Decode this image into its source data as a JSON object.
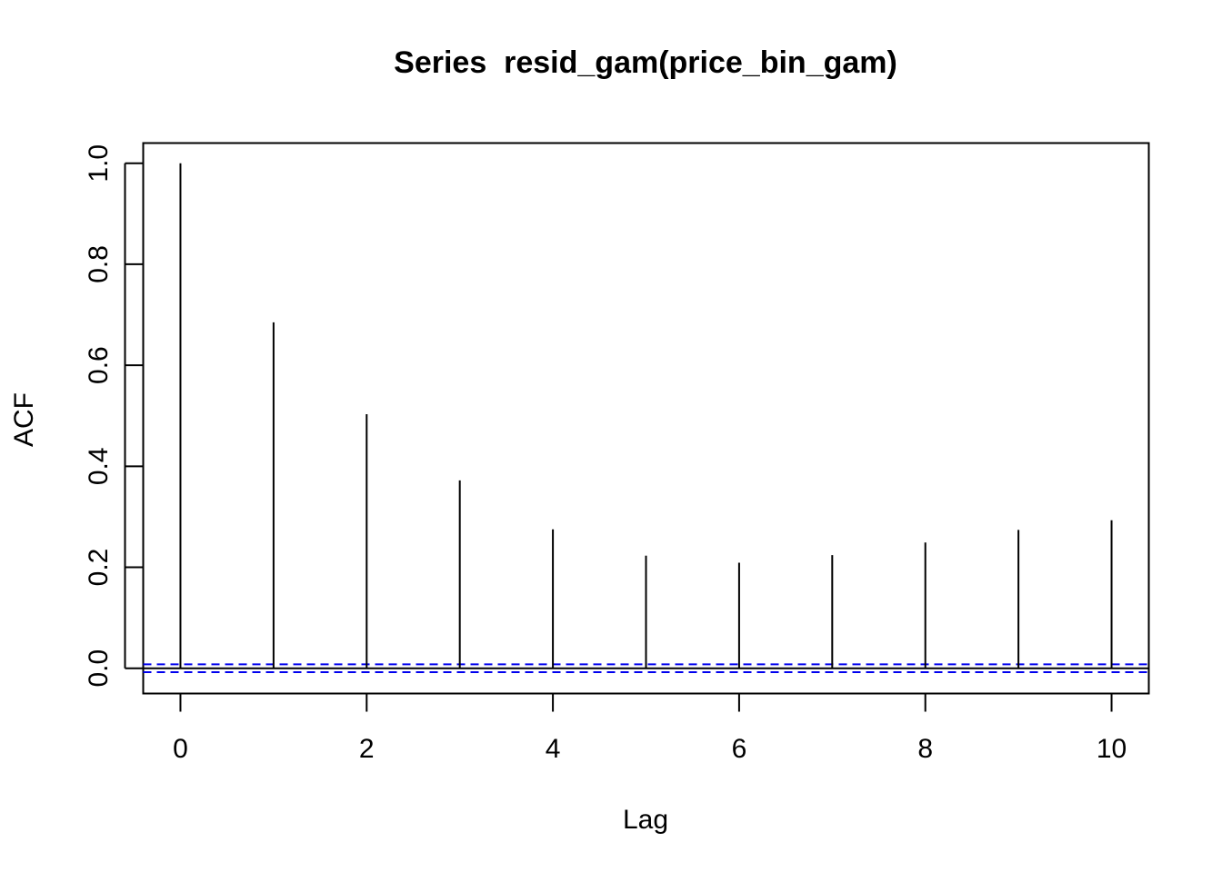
{
  "chart_data": {
    "type": "bar",
    "title": "Series  resid_gam(price_bin_gam)",
    "xlabel": "Lag",
    "ylabel": "ACF",
    "x": [
      0,
      1,
      2,
      3,
      4,
      5,
      6,
      7,
      8,
      9,
      10
    ],
    "values": [
      1.0,
      0.685,
      0.503,
      0.372,
      0.275,
      0.223,
      0.209,
      0.224,
      0.249,
      0.274,
      0.293
    ],
    "xlim": [
      -0.4,
      10.4
    ],
    "ylim": [
      -0.05,
      1.04
    ],
    "x_ticks": [
      "0",
      "2",
      "4",
      "6",
      "8",
      "10"
    ],
    "y_ticks": [
      "0.0",
      "0.2",
      "0.4",
      "0.6",
      "0.8",
      "1.0"
    ],
    "confidence_bound": 0.0077,
    "zero_line": true,
    "grid": false,
    "colors": {
      "bars": "#000000",
      "confidence": "#0000ee",
      "axes": "#000000"
    }
  }
}
